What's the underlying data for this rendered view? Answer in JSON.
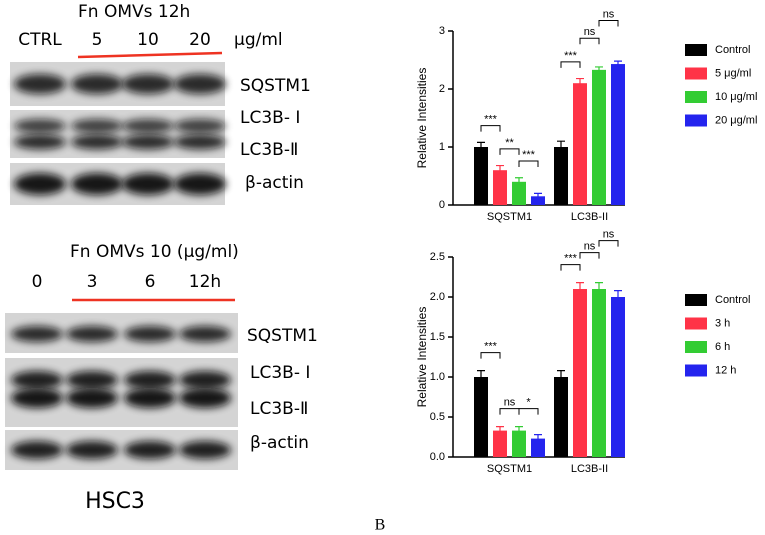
{
  "blots": [
    {
      "treatment": "Fn OMVs  12h",
      "unit": "μg/ml",
      "lanes": [
        "CTRL",
        "5",
        "10",
        "20"
      ],
      "bands": [
        "SQSTM1",
        "LC3B- Ⅰ",
        "LC3B-Ⅱ",
        "β-actin"
      ]
    },
    {
      "treatment": "Fn OMVs  10 (μg/ml)",
      "lanes": [
        "0",
        "3",
        "6",
        "12h"
      ],
      "bands": [
        "SQSTM1",
        "LC3B- Ⅰ",
        "LC3B-Ⅱ",
        "β-actin"
      ]
    }
  ],
  "cell_line": "HSC3",
  "panel": "B",
  "chart_data": [
    {
      "type": "bar",
      "ylabel": "Relative Intensities",
      "categories": [
        "SQSTM1",
        "LC3B-II"
      ],
      "ylim": [
        0,
        3
      ],
      "yticks": [
        0,
        1,
        2,
        3
      ],
      "series": [
        {
          "name": "Control",
          "color": "#000000",
          "values": [
            1,
            1
          ],
          "errors": [
            0.08,
            0.1
          ]
        },
        {
          "name": "5 μg/ml",
          "color": "#ff3347",
          "values": [
            0.6,
            2.1
          ],
          "errors": [
            0.08,
            0.08
          ]
        },
        {
          "name": "10 μg/ml",
          "color": "#33cc33",
          "values": [
            0.4,
            2.33
          ],
          "errors": [
            0.07,
            0.05
          ]
        },
        {
          "name": "20 μg/ml",
          "color": "#2424ee",
          "values": [
            0.15,
            2.43
          ],
          "errors": [
            0.05,
            0.05
          ]
        }
      ],
      "annotations": [
        {
          "text": "***",
          "category": 0,
          "pair": [
            0,
            1
          ]
        },
        {
          "text": "**",
          "category": 0,
          "pair": [
            1,
            2
          ]
        },
        {
          "text": "***",
          "category": 0,
          "pair": [
            2,
            3
          ]
        },
        {
          "text": "***",
          "category": 1,
          "pair": [
            0,
            1
          ]
        },
        {
          "text": "ns",
          "category": 1,
          "pair": [
            1,
            2
          ]
        },
        {
          "text": "ns",
          "category": 1,
          "pair": [
            2,
            3
          ]
        }
      ]
    },
    {
      "type": "bar",
      "ylabel": "Relative Intensities",
      "categories": [
        "SQSTM1",
        "LC3B-II"
      ],
      "ylim": [
        0,
        2.5
      ],
      "yticks": [
        {
          "value": 0,
          "label": "0.0"
        },
        {
          "value": 0.5,
          "label": "0.5"
        },
        {
          "value": 1,
          "label": "1.0"
        },
        {
          "value": 1.5,
          "label": "1.5"
        },
        {
          "value": 2,
          "label": "2.0"
        },
        {
          "value": 2.5,
          "label": "2.5"
        }
      ],
      "series": [
        {
          "name": "Control",
          "color": "#000000",
          "values": [
            1,
            1
          ],
          "errors": [
            0.08,
            0.08
          ]
        },
        {
          "name": "3 h",
          "color": "#ff3347",
          "values": [
            0.33,
            2.1
          ],
          "errors": [
            0.05,
            0.08
          ]
        },
        {
          "name": "6 h",
          "color": "#33cc33",
          "values": [
            0.33,
            2.1
          ],
          "errors": [
            0.05,
            0.08
          ]
        },
        {
          "name": "12 h",
          "color": "#2424ee",
          "values": [
            0.23,
            2.0
          ],
          "errors": [
            0.05,
            0.08
          ]
        }
      ],
      "annotations": [
        {
          "text": "***",
          "category": 0,
          "pair": [
            0,
            1
          ]
        },
        {
          "text": "ns",
          "category": 0,
          "pair": [
            1,
            2
          ]
        },
        {
          "text": "*",
          "category": 0,
          "pair": [
            2,
            3
          ]
        },
        {
          "text": "***",
          "category": 1,
          "pair": [
            0,
            1
          ]
        },
        {
          "text": "ns",
          "category": 1,
          "pair": [
            1,
            2
          ]
        },
        {
          "text": "ns",
          "category": 1,
          "pair": [
            2,
            3
          ]
        }
      ]
    }
  ]
}
